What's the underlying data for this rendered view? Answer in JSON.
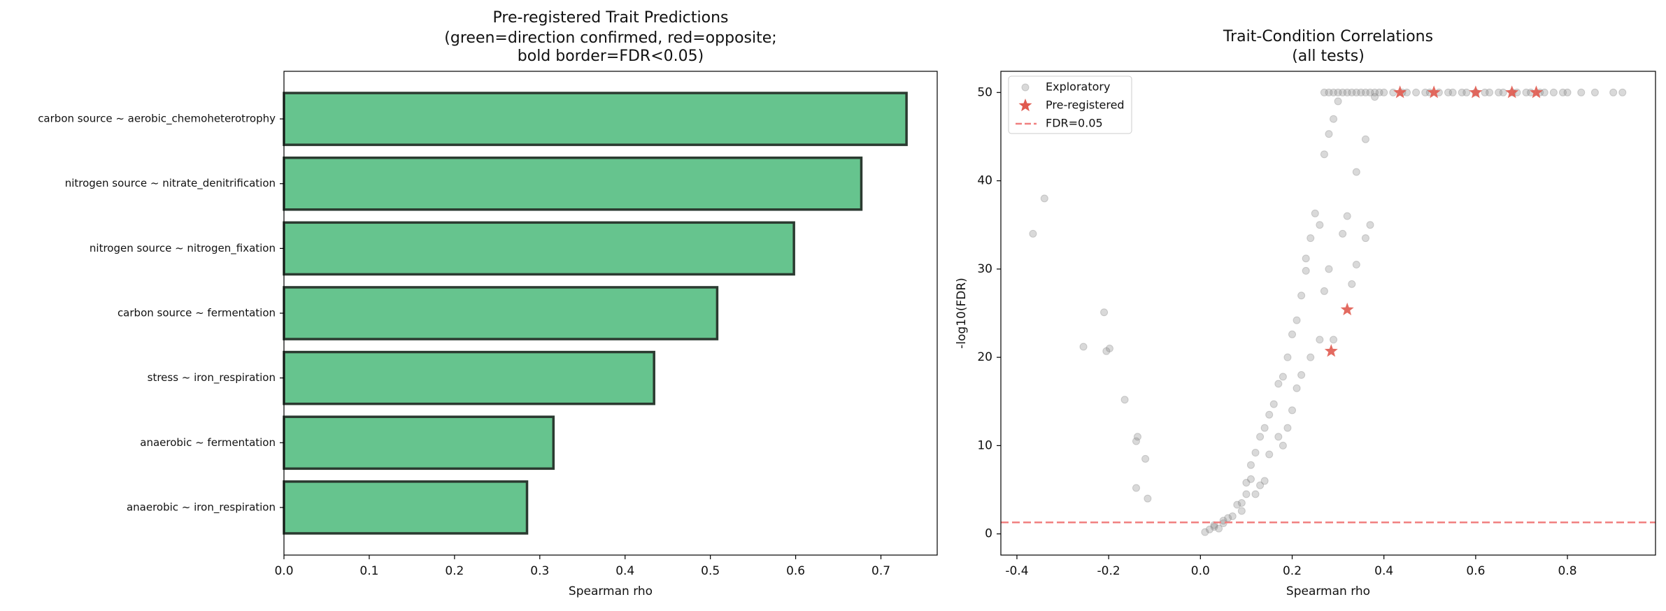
{
  "chart_data": [
    {
      "type": "hbar",
      "title": [
        "Pre-registered Trait Predictions",
        "(green=direction confirmed, red=opposite;",
        "bold border=FDR<0.05)"
      ],
      "xlabel": "Spearman rho",
      "categories": [
        "carbon source ~ aerobic_chemoheterotrophy",
        "nitrogen source ~ nitrate_denitrification",
        "nitrogen source ~ nitrogen_fixation",
        "carbon source ~ fermentation",
        "stress ~ iron_respiration",
        "anaerobic ~ fermentation",
        "anaerobic ~ iron_respiration"
      ],
      "values": [
        0.73,
        0.677,
        0.598,
        0.508,
        0.434,
        0.316,
        0.285
      ],
      "color": "#66c48e",
      "edgecolor": "#2b3a30",
      "xlim": [
        0,
        0.766
      ],
      "xticks": [
        {
          "value": 0,
          "label": "0.0"
        },
        0.1,
        0.2,
        0.3,
        0.4,
        0.5,
        0.6,
        0.7
      ]
    },
    {
      "type": "scatter",
      "title": [
        "Trait-Condition Correlations",
        "(all tests)"
      ],
      "xlabel": "Spearman rho",
      "ylabel": "-log10(FDR)",
      "xlim": [
        -0.435,
        0.992
      ],
      "ylim": [
        -2.4,
        52.4
      ],
      "xticks": [
        -0.4,
        -0.2,
        {
          "value": 0,
          "label": "0.0"
        },
        0.2,
        0.4,
        0.6,
        0.8
      ],
      "yticks": [
        0,
        10,
        20,
        30,
        40,
        50
      ],
      "legend": "upper left",
      "series": [
        {
          "name": "Exploratory",
          "color": "#808080",
          "marker": "circle",
          "x": [
            -0.365,
            -0.34,
            -0.255,
            -0.21,
            -0.205,
            -0.198,
            -0.165,
            -0.14,
            -0.137,
            -0.14,
            -0.12,
            -0.115,
            0.01,
            0.02,
            0.03,
            0.03,
            0.04,
            0.05,
            0.05,
            0.06,
            0.07,
            0.08,
            0.09,
            0.09,
            0.1,
            0.1,
            0.11,
            0.11,
            0.12,
            0.12,
            0.13,
            0.13,
            0.14,
            0.14,
            0.15,
            0.15,
            0.16,
            0.17,
            0.17,
            0.18,
            0.18,
            0.19,
            0.19,
            0.2,
            0.2,
            0.21,
            0.21,
            0.22,
            0.22,
            0.23,
            0.23,
            0.24,
            0.24,
            0.25,
            0.26,
            0.26,
            0.27,
            0.27,
            0.28,
            0.28,
            0.29,
            0.29,
            0.3,
            0.31,
            0.32,
            0.33,
            0.34,
            0.34,
            0.36,
            0.36,
            0.37,
            0.38,
            0.27,
            0.28,
            0.29,
            0.3,
            0.31,
            0.32,
            0.33,
            0.34,
            0.35,
            0.36,
            0.37,
            0.38,
            0.39,
            0.4,
            0.42,
            0.44,
            0.45,
            0.47,
            0.49,
            0.5,
            0.52,
            0.54,
            0.55,
            0.57,
            0.58,
            0.6,
            0.62,
            0.63,
            0.65,
            0.66,
            0.68,
            0.69,
            0.71,
            0.72,
            0.74,
            0.75,
            0.77,
            0.79,
            0.8,
            0.83,
            0.86,
            0.9,
            0.92
          ],
          "y": [
            34,
            38,
            21.2,
            25.1,
            20.7,
            21,
            15.2,
            10.5,
            11,
            5.2,
            8.5,
            4,
            0.2,
            0.5,
            0.8,
            1.0,
            0.6,
            1.5,
            1.2,
            1.8,
            2.0,
            3.3,
            2.6,
            3.5,
            4.5,
            5.8,
            6.2,
            7.8,
            4.5,
            9.2,
            5.5,
            11,
            6,
            12,
            13.5,
            9,
            14.7,
            11,
            17,
            17.8,
            10,
            20,
            12,
            14,
            22.6,
            24.2,
            16.5,
            27,
            18,
            29.8,
            31.2,
            33.5,
            20,
            36.3,
            35,
            22,
            43,
            27.5,
            45.3,
            30,
            47,
            22,
            49,
            34,
            36,
            28.3,
            41,
            30.5,
            44.7,
            33.5,
            35,
            49.5,
            50,
            50,
            50,
            50,
            50,
            50,
            50,
            50,
            50,
            50,
            50,
            50,
            50,
            50,
            50,
            50,
            50,
            50,
            50,
            50,
            50,
            50,
            50,
            50,
            50,
            50,
            50,
            50,
            50,
            50,
            50,
            50,
            50,
            50,
            50,
            50,
            50,
            50,
            50,
            50,
            50,
            50,
            50
          ]
        },
        {
          "name": "Pre-registered",
          "color": "#e05a4f",
          "marker": "star",
          "x": [
            0.435,
            0.509,
            0.6,
            0.679,
            0.732,
            0.285,
            0.32
          ],
          "y": [
            50,
            50,
            50,
            50,
            50,
            20.7,
            25.4
          ]
        }
      ],
      "reference_lines": [
        {
          "name": "FDR=0.05",
          "value": 1.30103,
          "color": "#f08080",
          "style": "dashed"
        }
      ]
    }
  ]
}
